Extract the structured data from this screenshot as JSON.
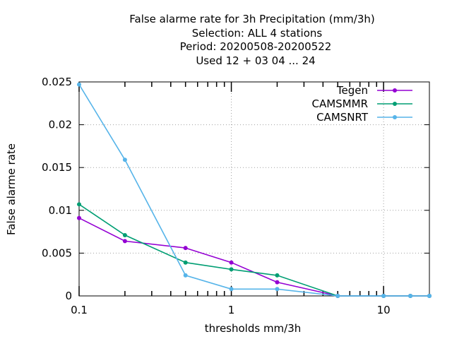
{
  "chart_data": {
    "type": "line",
    "title_lines": [
      "False alarme rate  for 3h Precipitation (mm/3h)",
      "Selection: ALL      4 stations",
      "Period: 20200508-20200522",
      "Used  12 + 03 04 ... 24"
    ],
    "xlabel": "thresholds mm/3h",
    "ylabel": "False alarme rate",
    "x_scale": "log",
    "xlim": [
      0.1,
      20
    ],
    "ylim": [
      0,
      0.025
    ],
    "x_ticks": [
      {
        "value": 0.1,
        "label": "0.1"
      },
      {
        "value": 1,
        "label": "1"
      },
      {
        "value": 10,
        "label": "10"
      }
    ],
    "y_ticks": [
      {
        "value": 0,
        "label": "0"
      },
      {
        "value": 0.005,
        "label": "0.005"
      },
      {
        "value": 0.01,
        "label": "0.01"
      },
      {
        "value": 0.015,
        "label": "0.015"
      },
      {
        "value": 0.02,
        "label": "0.02"
      },
      {
        "value": 0.025,
        "label": "0.025"
      }
    ],
    "grid": true,
    "legend_position": "top-right",
    "x": [
      0.1,
      0.2,
      0.5,
      1,
      2,
      5,
      10,
      15,
      20
    ],
    "series": [
      {
        "name": "Tegen",
        "color": "#9400d3",
        "values": [
          0.0091,
          0.0064,
          0.0056,
          0.0039,
          0.0016,
          0,
          0,
          0,
          0
        ]
      },
      {
        "name": "CAMSMMR",
        "color": "#009e73",
        "values": [
          0.0107,
          0.0071,
          0.0039,
          0.0031,
          0.0024,
          0,
          0,
          0,
          0
        ]
      },
      {
        "name": "CAMSNRT",
        "color": "#56b4e9",
        "values": [
          0.0247,
          0.0159,
          0.0024,
          0.0008,
          0.0008,
          0,
          0,
          0,
          0
        ]
      }
    ]
  }
}
